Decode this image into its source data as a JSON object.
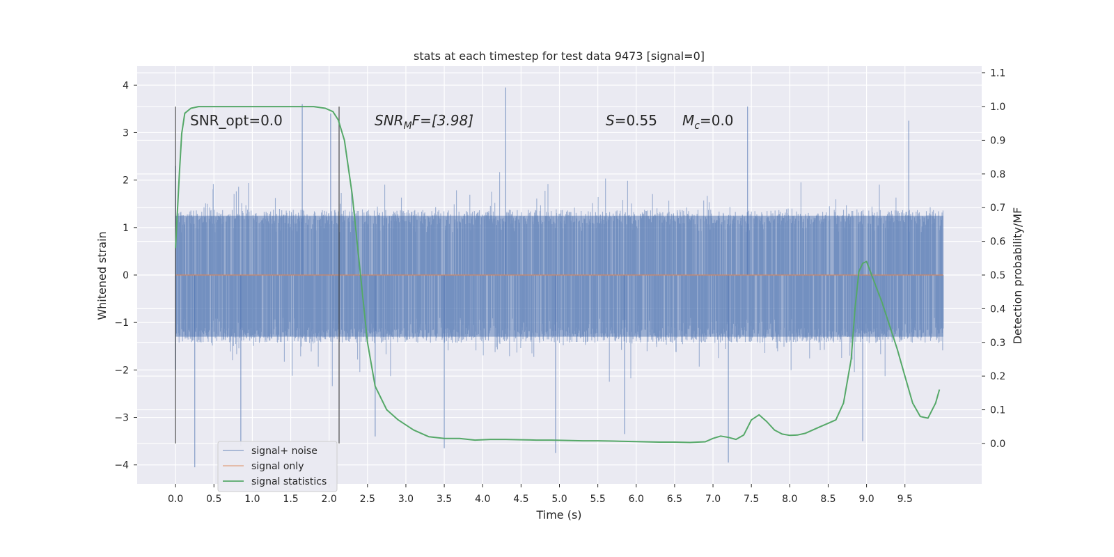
{
  "chart_data": {
    "type": "line",
    "title": "stats at each timestep for test data 9473 [signal=0]",
    "xlabel": "Time (s)",
    "ylabel": "Whitened strain",
    "y2label": "Detection probability/MF",
    "xlim": [
      -0.5,
      10.5
    ],
    "ylim": [
      -4.4,
      4.4
    ],
    "y2lim": [
      -0.12,
      1.12
    ],
    "xticks": [
      "0.0",
      "0.5",
      "1.0",
      "1.5",
      "2.0",
      "2.5",
      "3.0",
      "3.5",
      "4.0",
      "4.5",
      "5.0",
      "5.5",
      "6.0",
      "6.5",
      "7.0",
      "7.5",
      "8.0",
      "8.5",
      "9.0",
      "9.5"
    ],
    "yticks": [
      "4",
      "3",
      "2",
      "1",
      "0",
      "−1",
      "−2",
      "−3",
      "−4"
    ],
    "y2ticks": [
      "1.1",
      "1.0",
      "0.9",
      "0.8",
      "0.7",
      "0.6",
      "0.5",
      "0.4",
      "0.3",
      "0.2",
      "0.1",
      "0.0"
    ],
    "grid": true,
    "legend_position": "lower-left",
    "annotations": {
      "snr_opt": "SNR_opt=0.0",
      "snr_mf_main": "SNR",
      "snr_mf_sub": "M",
      "snr_mf_rest": "F=[3.98]",
      "s_var": "S",
      "s_val": "=0.55",
      "mc_var": "M",
      "mc_sub": "c",
      "mc_val": "=0.0"
    },
    "vertical_lines_x": [
      0.0,
      2.13
    ],
    "series": [
      {
        "name": "signal+ noise",
        "color": "#4c72b0",
        "axis": "left",
        "x_range": [
          0.0,
          10.0
        ],
        "typical_amplitude": [
          -1.3,
          1.25
        ],
        "peaks": [
          {
            "x": 0.0,
            "y": 2.3
          },
          {
            "x": 0.0,
            "y": -2.0
          },
          {
            "x": 0.25,
            "y": -4.05
          },
          {
            "x": 0.85,
            "y": -3.6
          },
          {
            "x": 1.65,
            "y": 3.6
          },
          {
            "x": 2.02,
            "y": 3.4
          },
          {
            "x": 2.6,
            "y": -3.4
          },
          {
            "x": 3.5,
            "y": -3.65
          },
          {
            "x": 4.3,
            "y": 3.95
          },
          {
            "x": 4.95,
            "y": -3.75
          },
          {
            "x": 5.85,
            "y": -3.35
          },
          {
            "x": 7.2,
            "y": -3.95
          },
          {
            "x": 7.45,
            "y": 3.55
          },
          {
            "x": 8.95,
            "y": -3.5
          },
          {
            "x": 9.55,
            "y": 3.25
          }
        ]
      },
      {
        "name": "signal only",
        "color": "#dd8452",
        "axis": "left",
        "x": [
          0.0,
          10.0
        ],
        "y": [
          0.0,
          0.0
        ]
      },
      {
        "name": "signal statistics",
        "color": "#55a868",
        "axis": "right",
        "x": [
          0.0,
          0.05,
          0.08,
          0.12,
          0.2,
          0.3,
          0.5,
          1.0,
          1.5,
          1.8,
          1.95,
          2.05,
          2.12,
          2.2,
          2.3,
          2.4,
          2.5,
          2.6,
          2.75,
          2.9,
          3.1,
          3.3,
          3.5,
          3.7,
          3.9,
          4.1,
          4.3,
          4.5,
          4.7,
          4.9,
          5.1,
          5.3,
          5.5,
          5.7,
          5.9,
          6.1,
          6.3,
          6.5,
          6.7,
          6.9,
          7.0,
          7.1,
          7.2,
          7.3,
          7.4,
          7.5,
          7.6,
          7.7,
          7.8,
          7.9,
          8.0,
          8.1,
          8.2,
          8.3,
          8.4,
          8.5,
          8.6,
          8.7,
          8.8,
          8.85,
          8.9,
          8.95,
          9.0,
          9.1,
          9.2,
          9.3,
          9.4,
          9.5,
          9.6,
          9.7,
          9.8,
          9.9,
          9.95
        ],
        "y": [
          0.58,
          0.8,
          0.92,
          0.98,
          0.995,
          1.0,
          1.0,
          1.0,
          1.0,
          1.0,
          0.995,
          0.985,
          0.96,
          0.9,
          0.74,
          0.52,
          0.3,
          0.17,
          0.1,
          0.07,
          0.04,
          0.02,
          0.015,
          0.015,
          0.01,
          0.012,
          0.012,
          0.011,
          0.01,
          0.01,
          0.009,
          0.008,
          0.008,
          0.007,
          0.006,
          0.005,
          0.004,
          0.004,
          0.003,
          0.005,
          0.015,
          0.022,
          0.018,
          0.012,
          0.025,
          0.07,
          0.085,
          0.065,
          0.04,
          0.028,
          0.024,
          0.025,
          0.03,
          0.04,
          0.05,
          0.06,
          0.07,
          0.12,
          0.25,
          0.4,
          0.51,
          0.535,
          0.54,
          0.48,
          0.42,
          0.35,
          0.28,
          0.2,
          0.12,
          0.08,
          0.075,
          0.12,
          0.16
        ]
      }
    ]
  }
}
